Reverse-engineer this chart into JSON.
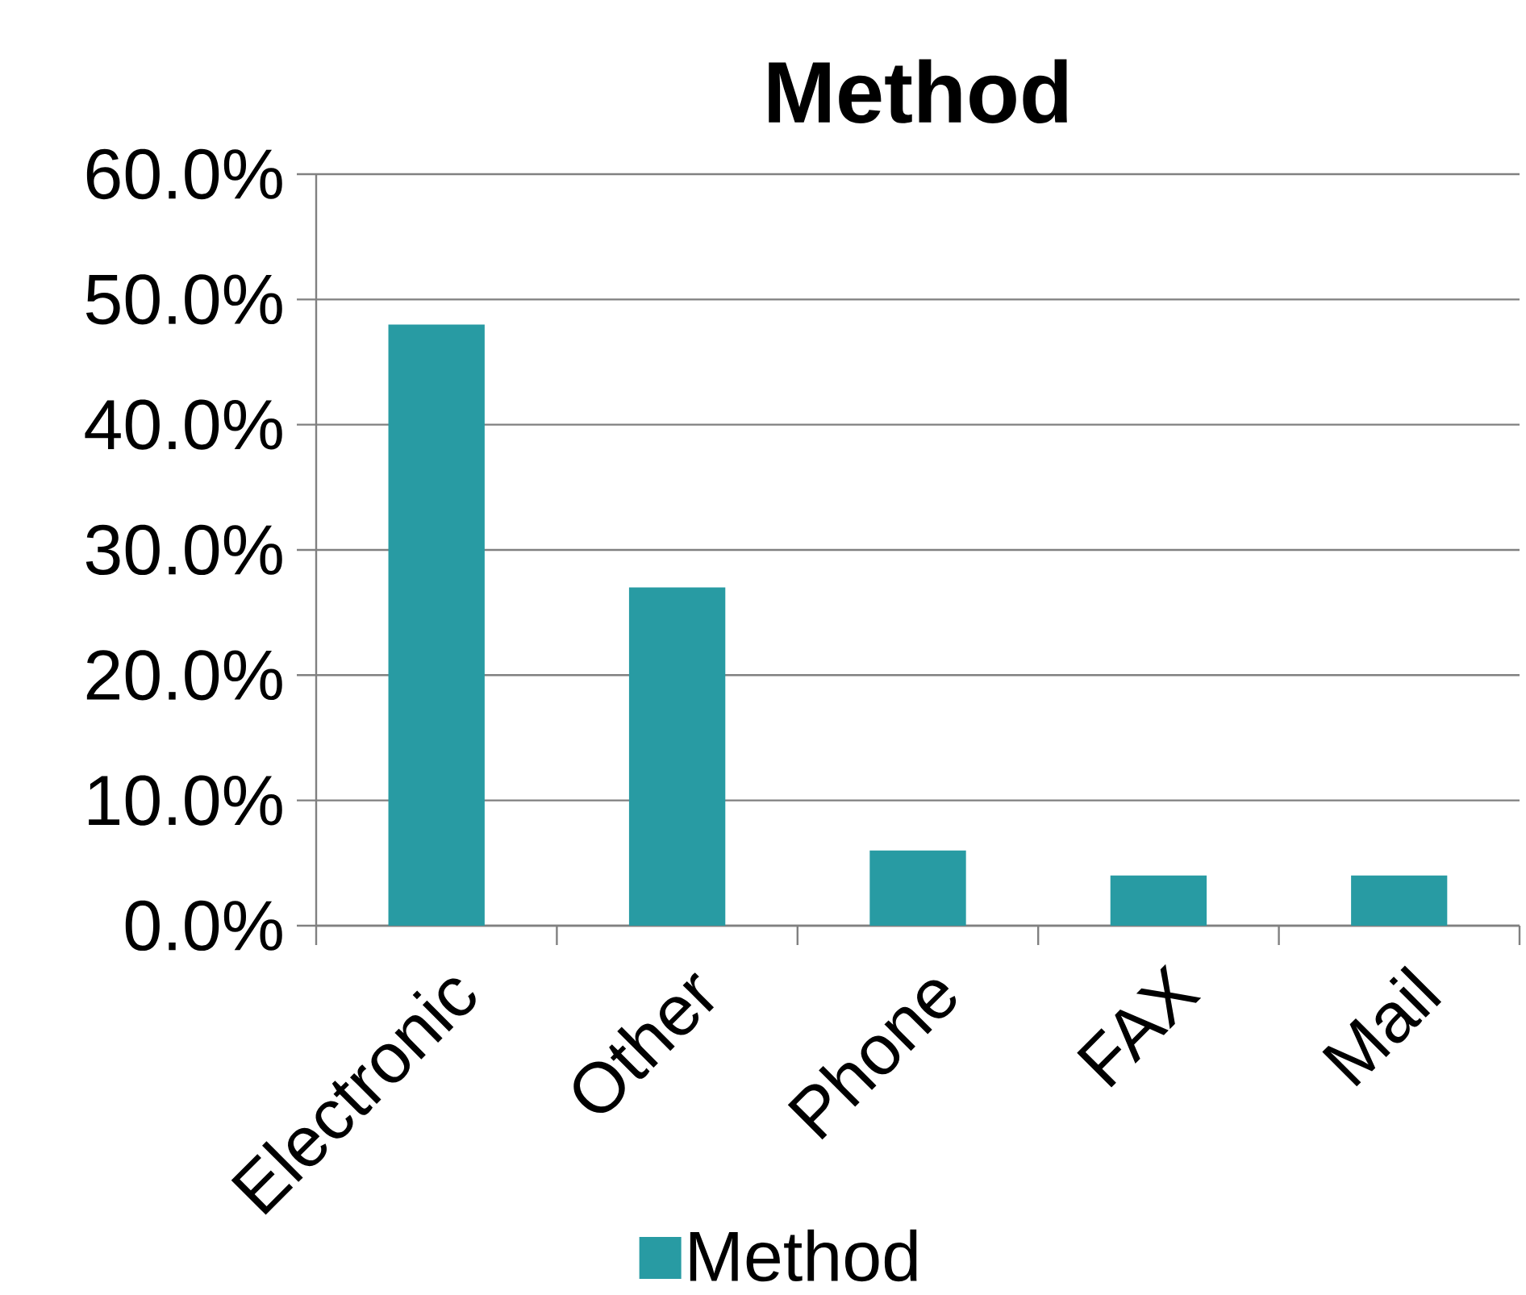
{
  "chart_data": {
    "type": "bar",
    "title": "Method",
    "categories": [
      "Electronic",
      "Other",
      "Phone",
      "FAX",
      "Mail"
    ],
    "series": [
      {
        "name": "Method",
        "color": "#289ba3",
        "values": [
          48,
          27,
          6,
          4,
          4
        ]
      }
    ],
    "ylim": [
      0,
      60
    ],
    "yticks": [
      {
        "value": 0,
        "label": "0.0%"
      },
      {
        "value": 10,
        "label": "10.0%"
      },
      {
        "value": 20,
        "label": "20.0%"
      },
      {
        "value": 30,
        "label": "30.0%"
      },
      {
        "value": 40,
        "label": "40.0%"
      },
      {
        "value": 50,
        "label": "50.0%"
      },
      {
        "value": 60,
        "label": "60.0%"
      }
    ],
    "grid": "y",
    "legend": "bottom"
  }
}
